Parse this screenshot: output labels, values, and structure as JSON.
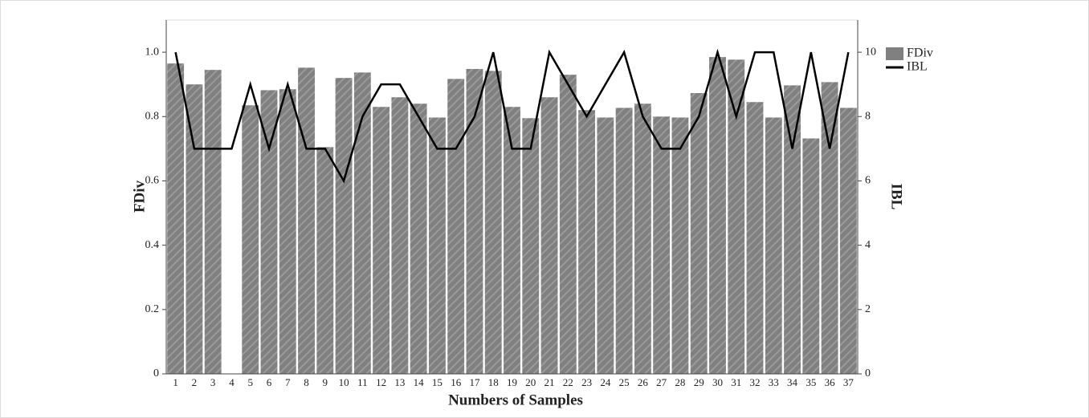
{
  "chart_data": {
    "type": "bar",
    "xlabel": "Numbers of Samples",
    "ylabel": "FDiv",
    "y2label": "IBL",
    "categories": [
      "1",
      "2",
      "3",
      "4",
      "5",
      "6",
      "7",
      "8",
      "9",
      "10",
      "11",
      "12",
      "13",
      "14",
      "15",
      "16",
      "17",
      "18",
      "19",
      "20",
      "21",
      "22",
      "23",
      "24",
      "25",
      "26",
      "27",
      "28",
      "29",
      "30",
      "31",
      "32",
      "33",
      "34",
      "35",
      "36",
      "37"
    ],
    "series": [
      {
        "name": "FDiv",
        "type": "bar",
        "color": "#808080",
        "values": [
          0.965,
          0.9,
          0.945,
          null,
          0.835,
          0.882,
          0.885,
          0.952,
          0.705,
          0.92,
          0.937,
          0.83,
          0.86,
          0.84,
          0.797,
          0.917,
          0.948,
          0.942,
          0.83,
          0.795,
          0.86,
          0.93,
          0.82,
          0.797,
          0.827,
          0.84,
          0.8,
          0.797,
          0.873,
          0.985,
          0.977,
          0.845,
          0.797,
          0.897,
          0.732,
          0.907,
          0.827
        ]
      },
      {
        "name": "IBL",
        "type": "line",
        "color": "#000000",
        "axis": "y2",
        "values": [
          10,
          7,
          7,
          7,
          9,
          7,
          9,
          7,
          7,
          6,
          8,
          9,
          9,
          8,
          7,
          7,
          8,
          10,
          7,
          7,
          10,
          9,
          8,
          9,
          10,
          8,
          7,
          7,
          8,
          10,
          8,
          10,
          10,
          7,
          10,
          7,
          10
        ]
      }
    ],
    "ylim": [
      0,
      1.1
    ],
    "yticks": [
      0,
      0.2,
      0.4,
      0.6,
      0.8,
      {
        "value": 1,
        "label": "1.0"
      }
    ],
    "y2lim": [
      0,
      11
    ],
    "y2ticks": [
      0,
      2,
      4,
      6,
      8,
      10
    ],
    "legend": "top-right"
  }
}
